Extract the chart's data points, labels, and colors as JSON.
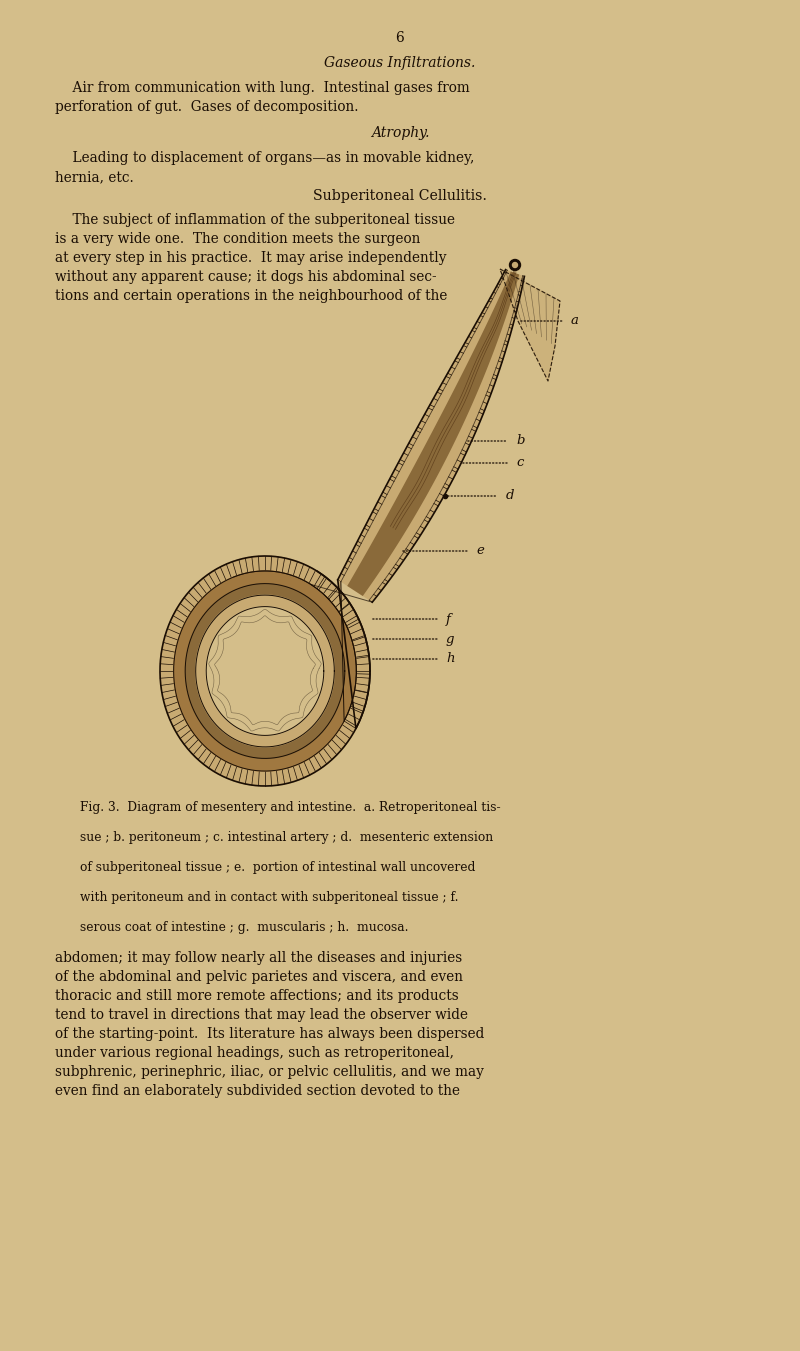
{
  "background_color": "#d4be8a",
  "text_color": "#1a0e04",
  "page_number": "6",
  "title_italic": "Gaseous Infiltrations.",
  "para1_indent": "    Air from communication with lung.  Intestinal gases from\nperforation of gut.  Gases of decomposition.",
  "title2_italic": "Atrophy.",
  "para2_indent": "    Leading to displacement of organs—as in movable kidney,\nhernia, etc.",
  "section_head": "Subperitoneal Cellulitis.",
  "para3_indent": "    The subject of inflammation of the subperitoneal tissue\nis a very wide one.  The condition meets the surgeon\nat every step in his practice.  It may arise independently\nwithout any apparent cause; it dogs his abdominal sec-\ntions and certain operations in the neighbourhood of the",
  "fig_caption_line1": "Fig. 3.  Diagram of mesentery and intestine.  a. Retroperitoneal tis-",
  "fig_caption_line2": "sue ; b. peritoneum ; c. intestinal artery ; d.  mesenteric extension",
  "fig_caption_line3": "of subperitoneal tissue ; e.  portion of intestinal wall uncovered",
  "fig_caption_line4": "with peritoneum and in contact with subperitoneal tissue ; f.",
  "fig_caption_line5": "serous coat of intestine ; g.  muscularis ; h.  mucosa.",
  "para4_indent": "abdomen; it may follow nearly all the diseases and injuries\nof the abdominal and pelvic parietes and viscera, and even\nthoracic and still more remote affections; and its products\ntend to travel in directions that may lead the observer wide\nof the starting-point.  Its literature has always been dispersed\nunder various regional headings, such as retroperitoneal,\nsubphrenic, perinephric, iliac, or pelvic cellulitis, and we may\neven find an elaborately subdivided section devoted to the",
  "label_a": "a",
  "label_b": "b",
  "label_c": "c",
  "label_d": "d",
  "label_e": "e",
  "label_f": "f",
  "label_g": "g",
  "label_h": "h",
  "line_color": "#1a0e04",
  "fill_light": "#d4be8a",
  "fill_med": "#b89a60",
  "fill_dark": "#7a5a30",
  "fill_very_dark": "#3a2a10"
}
